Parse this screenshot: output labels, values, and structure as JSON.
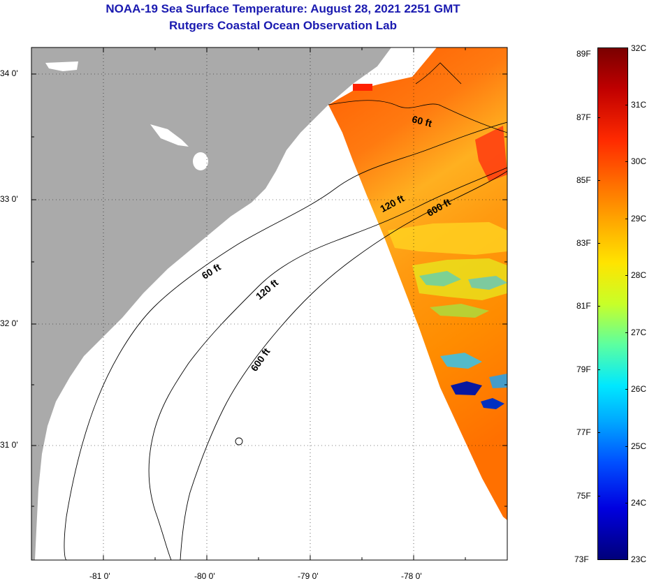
{
  "title": {
    "line1": "NOAA-19 Sea Surface Temperature:  August 28, 2021 2251 GMT",
    "line2": "Rutgers Coastal Ocean Observation Lab"
  },
  "axes": {
    "lat_labels": [
      "34 0'",
      "33 0'",
      "32 0'",
      "31 0'"
    ],
    "lon_labels": [
      "-81 0'",
      "-80 0'",
      "-79 0'",
      "-78 0'"
    ]
  },
  "contours": {
    "sixty_a": "60 ft",
    "sixty_b": "60 ft",
    "onetwenty_a": "120 ft",
    "onetwenty_b": "120 ft",
    "sixhundred_a": "600 ft",
    "sixhundred_b": "600 ft"
  },
  "colorbar": {
    "fahrenheit": [
      "89F",
      "87F",
      "85F",
      "83F",
      "81F",
      "79F",
      "77F",
      "75F",
      "73F"
    ],
    "celsius": [
      "32C",
      "31C",
      "30C",
      "29C",
      "28C",
      "27C",
      "26C",
      "25C",
      "24C",
      "23C"
    ]
  },
  "colors": {
    "land": "#aaaaaa",
    "title": "#1a1ab0",
    "ocean_nodata": "#ffffff"
  }
}
